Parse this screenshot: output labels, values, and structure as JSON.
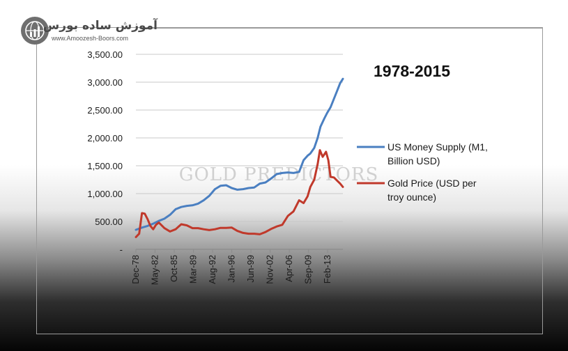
{
  "brand": {
    "name": "آموزش ساده بورس",
    "url": "www.Amoozesh-Boors.com"
  },
  "watermark": "GOLD PREDICTORS",
  "colors": {
    "money_supply": "#4a7fc1",
    "gold": "#c0392b",
    "grid": "#c8c8c8",
    "text": "#1a1a1a"
  },
  "chart_data": {
    "type": "line",
    "title": "1978-2015",
    "xlabel": "",
    "ylabel": "",
    "ylim": [
      0,
      3500
    ],
    "xlim": [
      1978.92,
      2015.8
    ],
    "y_ticks": [
      {
        "value": 0,
        "label": "-"
      },
      {
        "value": 500,
        "label": "500.00"
      },
      {
        "value": 1000,
        "label": "1,000.00"
      },
      {
        "value": 1500,
        "label": "1,500.00"
      },
      {
        "value": 2000,
        "label": "2,000.00"
      },
      {
        "value": 2500,
        "label": "2,500.00"
      },
      {
        "value": 3000,
        "label": "3,000.00"
      },
      {
        "value": 3500,
        "label": "3,500.00"
      }
    ],
    "x_ticks": [
      {
        "value": 1978.92,
        "label": "Dec-78"
      },
      {
        "value": 1982.33,
        "label": "May-82"
      },
      {
        "value": 1985.75,
        "label": "Oct-85"
      },
      {
        "value": 1989.17,
        "label": "Mar-89"
      },
      {
        "value": 1992.58,
        "label": "Aug-92"
      },
      {
        "value": 1996.0,
        "label": "Jan-96"
      },
      {
        "value": 1999.42,
        "label": "Jun-99"
      },
      {
        "value": 2002.83,
        "label": "Nov-02"
      },
      {
        "value": 2006.25,
        "label": "Apr-06"
      },
      {
        "value": 2009.67,
        "label": "Sep-09"
      },
      {
        "value": 2013.08,
        "label": "Feb-13"
      }
    ],
    "grid": true,
    "legend_position": "right",
    "series": [
      {
        "name": "US Money Supply (M1, Billion USD)",
        "legend_lines": [
          "US Money Supply (M1,",
          "Billion USD)"
        ],
        "color": "#4a7fc1",
        "x": [
          1978.92,
          1980,
          1981,
          1982,
          1983,
          1984,
          1985,
          1986,
          1987,
          1988,
          1989,
          1990,
          1991,
          1992,
          1993,
          1994,
          1995,
          1996,
          1997,
          1998,
          1999,
          2000,
          2001,
          2002,
          2003,
          2004,
          2005,
          2006,
          2007,
          2008,
          2008.8,
          2009.5,
          2010,
          2010.7,
          2011.3,
          2011.8,
          2012.5,
          2013,
          2013.6,
          2014.2,
          2014.8,
          2015.3,
          2015.8
        ],
        "values": [
          350,
          390,
          420,
          460,
          510,
          550,
          620,
          720,
          760,
          780,
          790,
          820,
          880,
          960,
          1080,
          1140,
          1150,
          1100,
          1070,
          1080,
          1100,
          1110,
          1180,
          1200,
          1270,
          1350,
          1370,
          1380,
          1370,
          1390,
          1600,
          1680,
          1720,
          1820,
          2000,
          2200,
          2350,
          2450,
          2550,
          2700,
          2850,
          2980,
          3060
        ]
      },
      {
        "name": "Gold Price (USD per troy ounce)",
        "legend_lines": [
          "Gold Price (USD per",
          "troy ounce)"
        ],
        "color": "#c0392b",
        "x": [
          1978.92,
          1979.5,
          1980.0,
          1980.5,
          1981.0,
          1981.5,
          1982.0,
          1982.5,
          1983.0,
          1984.0,
          1985.0,
          1986.0,
          1987.0,
          1988.0,
          1989.0,
          1990.0,
          1991.0,
          1992.0,
          1993.0,
          1994.0,
          1995.0,
          1996.0,
          1997.0,
          1998.0,
          1999.0,
          2000.0,
          2001.0,
          2002.0,
          2003.0,
          2004.0,
          2005.0,
          2006.0,
          2007.0,
          2008.0,
          2008.8,
          2009.5,
          2010.0,
          2010.7,
          2011.3,
          2011.7,
          2012.2,
          2012.8,
          2013.2,
          2013.6,
          2014.2,
          2014.8,
          2015.3,
          2015.8
        ],
        "values": [
          220,
          280,
          650,
          640,
          540,
          420,
          360,
          440,
          480,
          380,
          320,
          360,
          450,
          430,
          380,
          380,
          360,
          345,
          360,
          385,
          385,
          390,
          330,
          295,
          280,
          280,
          270,
          310,
          365,
          410,
          440,
          600,
          680,
          880,
          830,
          950,
          1120,
          1250,
          1530,
          1780,
          1660,
          1750,
          1600,
          1300,
          1290,
          1230,
          1180,
          1120
        ]
      }
    ]
  }
}
